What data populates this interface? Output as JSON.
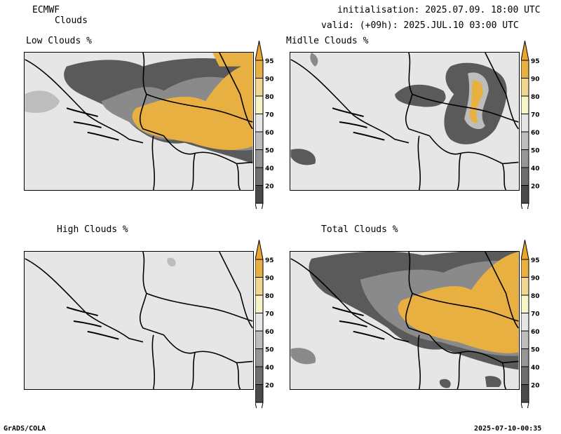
{
  "header": {
    "model": "ECMWF",
    "field": "Clouds",
    "init": "initialisation: 2025.07.09. 18:00 UTC",
    "valid": "valid: (+09h): 2025.JUL.10 03:00 UTC"
  },
  "panels": {
    "low": "Low Clouds %",
    "mid": "Midlle Clouds %",
    "high": "High Clouds %",
    "total": "Total Clouds %"
  },
  "colorbar": {
    "levels": [
      "20",
      "40",
      "50",
      "60",
      "70",
      "80",
      "90",
      "95"
    ],
    "colors": [
      "#4a4a4a",
      "#6e6e6e",
      "#969696",
      "#bdbdbd",
      "#f5f5c8",
      "#f0d890",
      "#e8b040",
      "#e8a830"
    ]
  },
  "footer": {
    "left": "GrADS/COLA",
    "right": "2025-07-10-00:35"
  }
}
